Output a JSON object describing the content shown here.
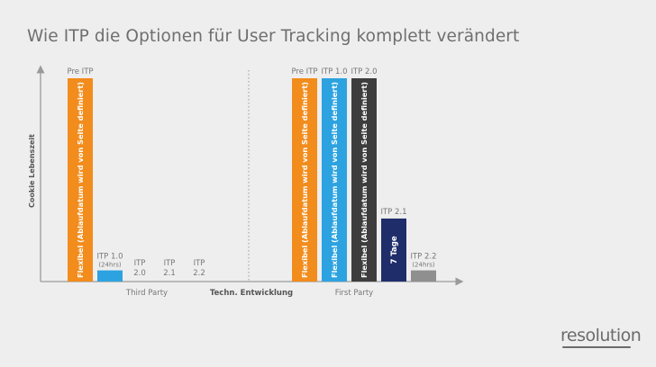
{
  "page_title": "Wie ITP die Optionen für User Tracking komplett verändert",
  "logo": "resolution",
  "colors": {
    "orange": "#f28c1c",
    "blue": "#2ca3e0",
    "dark": "#3d3d3d",
    "navy": "#1f2d6b",
    "gray": "#8f8f8f",
    "axis": "#9a9a9a",
    "text": "#777777"
  },
  "chart_data": {
    "type": "bar",
    "title": "Wie ITP die Optionen für User Tracking komplett verändert",
    "ylabel": "Cookie Lebenszeit",
    "separator_label": "Techn. Entwicklung",
    "ylim": [
      0,
      100
    ],
    "grid": false,
    "groups": [
      {
        "name": "Third Party",
        "bars": [
          {
            "label": "Pre ITP",
            "sublabel": "",
            "value": 100,
            "color": "orange",
            "bar_text": "Flexibel (Ablaufdatum wird von Seite definiert)"
          },
          {
            "label": "ITP 1.0",
            "sublabel": "(24hrs)",
            "value": 5.5,
            "color": "blue",
            "bar_text": ""
          },
          {
            "label": "ITP 2.0",
            "sublabel": "",
            "value": 0,
            "color": "",
            "bar_text": ""
          },
          {
            "label": "ITP 2.1",
            "sublabel": "",
            "value": 0,
            "color": "",
            "bar_text": ""
          },
          {
            "label": "ITP 2.2",
            "sublabel": "",
            "value": 0,
            "color": "",
            "bar_text": ""
          }
        ]
      },
      {
        "name": "First Party",
        "bars": [
          {
            "label": "Pre ITP",
            "sublabel": "",
            "value": 100,
            "color": "orange",
            "bar_text": "Flexibel (Ablaufdatum wird von Seite definiert)"
          },
          {
            "label": "ITP 1.0",
            "sublabel": "",
            "value": 100,
            "color": "blue",
            "bar_text": "Flexibel (Ablaufdatum wird von Seite definiert)"
          },
          {
            "label": "ITP 2.0",
            "sublabel": "",
            "value": 100,
            "color": "dark",
            "bar_text": "Flexibel (Ablaufdatum wird von Seite definiert)"
          },
          {
            "label": "ITP 2.1",
            "sublabel": "",
            "value": 31,
            "color": "navy",
            "bar_text": "7 Tage"
          },
          {
            "label": "ITP 2.2",
            "sublabel": "(24hrs)",
            "value": 5.5,
            "color": "gray",
            "bar_text": ""
          }
        ]
      }
    ]
  }
}
